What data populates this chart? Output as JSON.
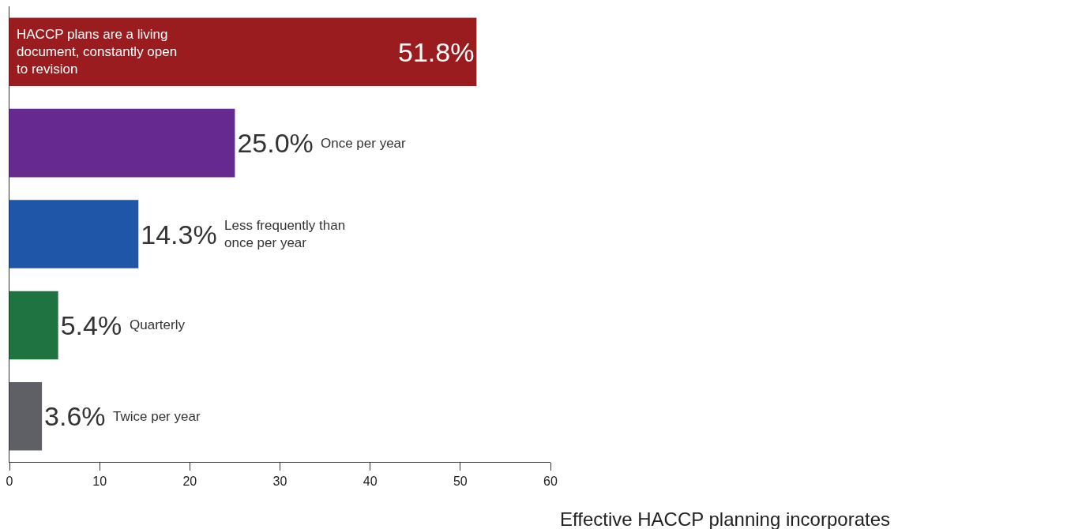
{
  "chart_data": {
    "type": "bar",
    "orientation": "horizontal",
    "categories": [
      "HACCP plans are a living document, constantly open to revision",
      "Once per year",
      "Less frequently than once per year",
      "Quarterly",
      "Twice per year"
    ],
    "values": [
      51.8,
      25.0,
      14.3,
      5.4,
      3.6
    ],
    "value_labels": [
      "51.8%",
      "25.0%",
      "14.3%",
      "5.4%",
      "3.6%"
    ],
    "colors": [
      "#9b1c1f",
      "#66298f",
      "#1f56a8",
      "#1e7340",
      "#5f6066"
    ],
    "xlim": [
      0,
      60
    ],
    "xticks": [
      0,
      10,
      20,
      30,
      40,
      50,
      60
    ],
    "tick_labels": "x",
    "annotations": [
      "Effective HACCP planning incorporates"
    ]
  }
}
